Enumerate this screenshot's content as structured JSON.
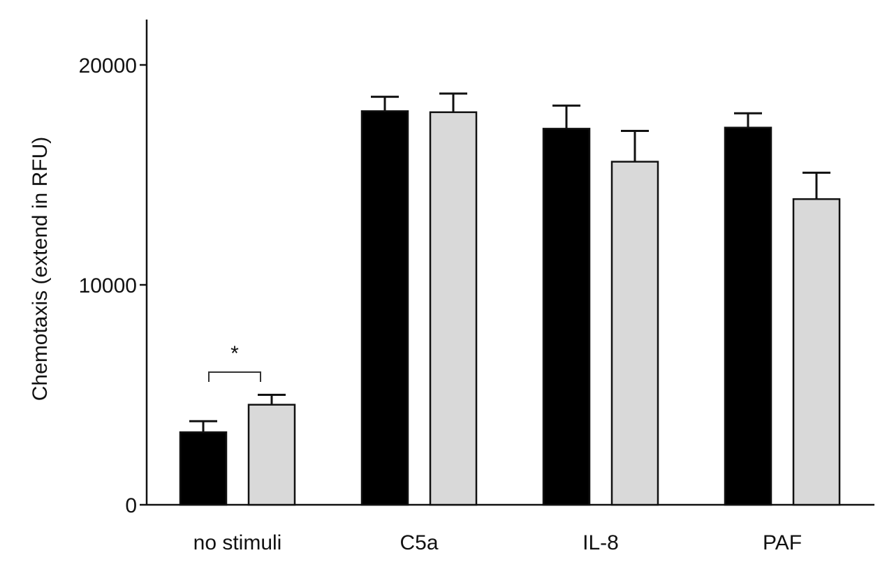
{
  "chart_data": {
    "type": "bar",
    "title": "",
    "xlabel": "",
    "ylabel": "Chemotaxis (extend in RFU)",
    "ylim": [
      0,
      22000
    ],
    "yticks": [
      0,
      10000,
      20000
    ],
    "ytick_labels": [
      "0",
      "10000",
      "20000"
    ],
    "categories": [
      "no stimuli",
      "C5a",
      "IL-8",
      "PAF"
    ],
    "series": [
      {
        "color": "#000000",
        "values": [
          3300,
          17900,
          17100,
          17150
        ],
        "errors": [
          500,
          650,
          1050,
          650
        ]
      },
      {
        "color": "#d9d9d9",
        "values": [
          4550,
          17850,
          15600,
          13900
        ],
        "errors": [
          450,
          850,
          1400,
          1200
        ]
      }
    ],
    "grid": false,
    "legend": "none",
    "annotations": [
      {
        "text": "*",
        "category_index": 0,
        "type": "significance-bracket"
      }
    ]
  }
}
